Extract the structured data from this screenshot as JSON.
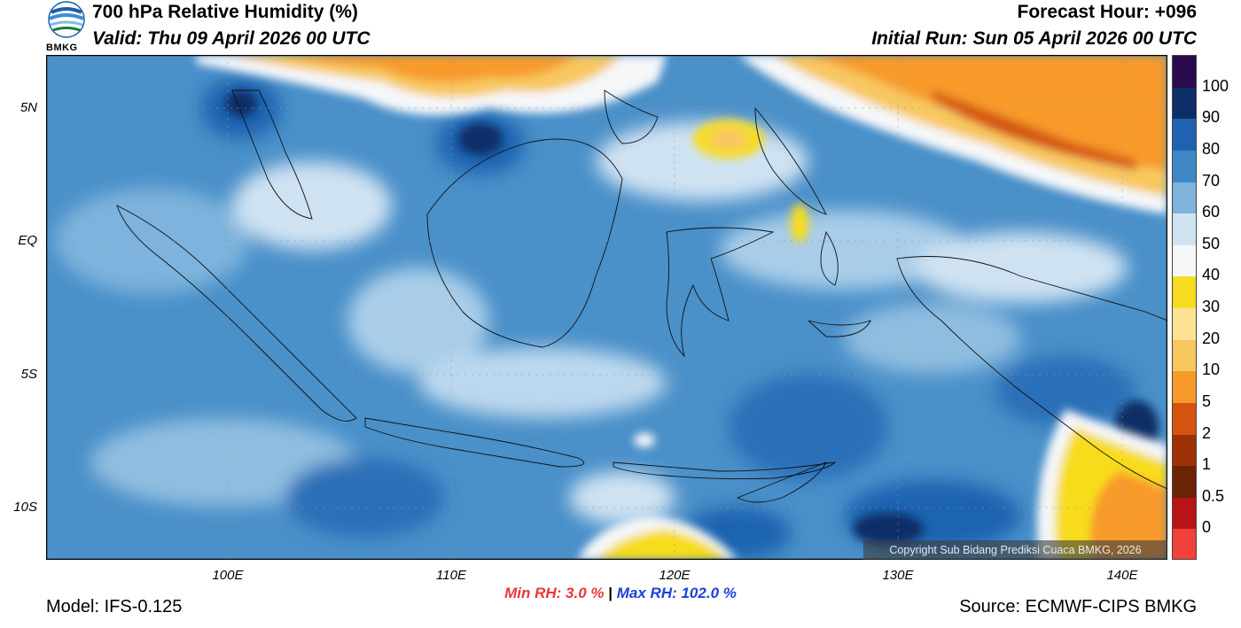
{
  "header": {
    "title": "700 hPa Relative Humidity (%)",
    "valid": "Valid: Thu 09 April 2026 00 UTC",
    "forecast_hour": "Forecast Hour: +096",
    "initial_run": "Initial Run: Sun 05 April 2026 00 UTC",
    "logo_text": "BMKG"
  },
  "map": {
    "lat_labels": [
      "5N",
      "EQ",
      "5S",
      "10S"
    ],
    "lon_labels": [
      "100E",
      "110E",
      "120E",
      "130E",
      "140E"
    ],
    "copyright": "Copyright Sub Bidang Prediksi Cuaca BMKG, 2026"
  },
  "colorbar": {
    "labels": [
      "100",
      "90",
      "80",
      "70",
      "60",
      "50",
      "40",
      "30",
      "20",
      "10",
      "5",
      "2",
      "1",
      "0.5",
      "0"
    ],
    "colors": [
      "#2b0a4d",
      "#0d2e66",
      "#1f63b0",
      "#3f88c6",
      "#7db3dc",
      "#cfe2f2",
      "#f5f7f9",
      "#f7dc1f",
      "#fbe393",
      "#f8c760",
      "#f79a2a",
      "#d4540f",
      "#9c3206",
      "#6b2405",
      "#b81418",
      "#f0413a"
    ]
  },
  "footer": {
    "min_rh": "Min RH:   3.0 %",
    "max_rh": "Max RH: 102.0 %",
    "separator": "|",
    "model": "Model: IFS-0.125",
    "source": "Source: ECMWF-CIPS BMKG"
  }
}
